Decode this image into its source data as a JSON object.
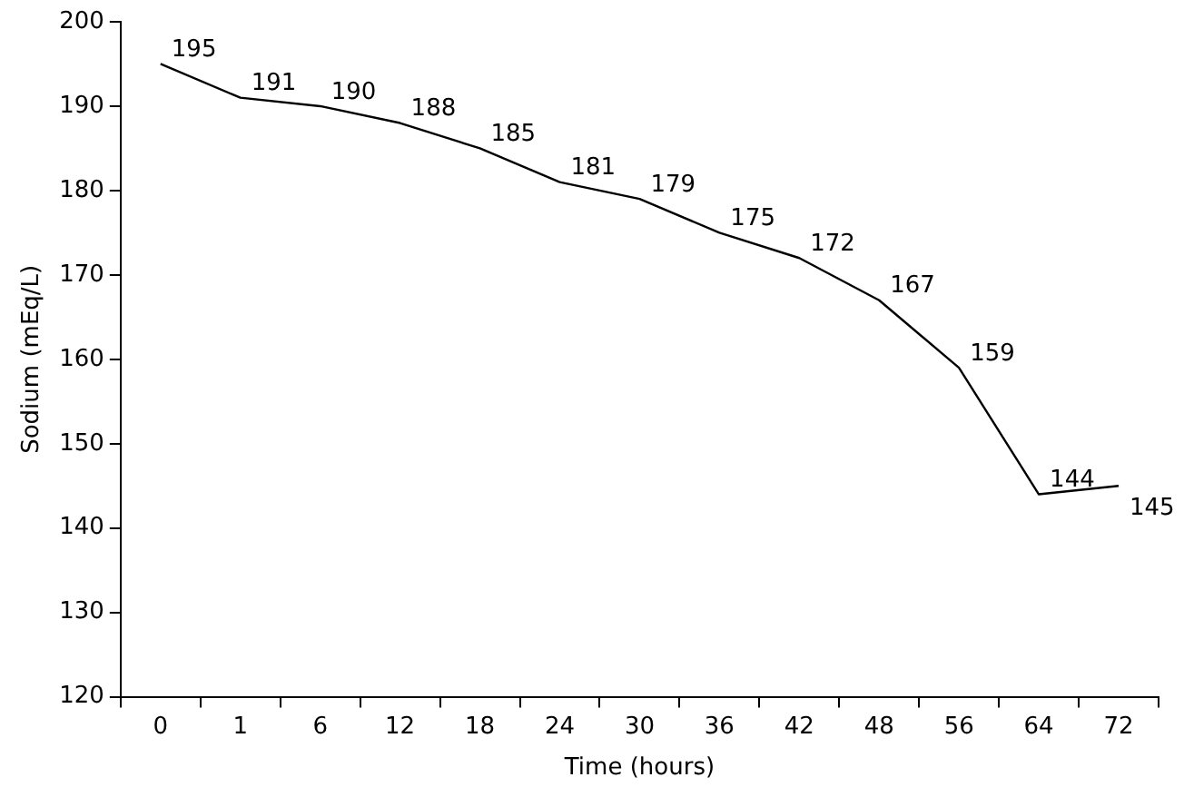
{
  "chart_data": {
    "type": "line",
    "xlabel": "Time (hours)",
    "ylabel": "Sodium (mEq/L)",
    "categories": [
      "0",
      "1",
      "6",
      "12",
      "18",
      "24",
      "30",
      "36",
      "42",
      "48",
      "56",
      "64",
      "72"
    ],
    "series": [
      {
        "color": "#000000",
        "values": [
          195,
          191,
          190,
          188,
          185,
          181,
          179,
          175,
          172,
          167,
          159,
          144,
          145
        ]
      }
    ],
    "ylim": [
      120,
      200
    ],
    "yticks": [
      120,
      130,
      140,
      150,
      160,
      170,
      180,
      190,
      200
    ],
    "grid": false,
    "legend": false,
    "marker": "none",
    "line_style": "solid",
    "data_labels": true
  }
}
